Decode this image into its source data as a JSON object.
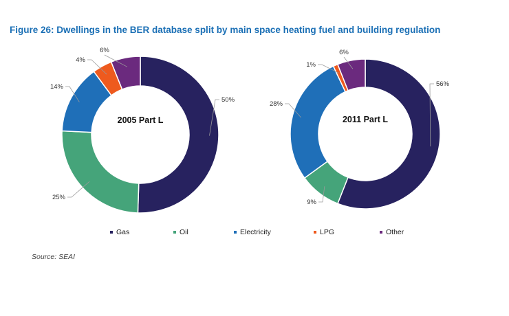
{
  "title": "Figure 26:  Dwellings in the BER database split by main space heating fuel and building regulation",
  "source": "Source: SEAI",
  "legend": [
    {
      "label": "Gas",
      "color": "#27225f"
    },
    {
      "label": "Oil",
      "color": "#45a47a"
    },
    {
      "label": "Electricity",
      "color": "#1f6fb8"
    },
    {
      "label": "LPG",
      "color": "#ee5a1e"
    },
    {
      "label": "Other",
      "color": "#6b2a7e"
    }
  ],
  "chart_data": [
    {
      "type": "pie",
      "donut": true,
      "title": "2005 Part L",
      "categories": [
        "Gas",
        "Oil",
        "Electricity",
        "LPG",
        "Other"
      ],
      "values": [
        50,
        25,
        14,
        4,
        6
      ],
      "labels": [
        "50%",
        "25%",
        "14%",
        "4%",
        "6%"
      ],
      "colors": [
        "#27225f",
        "#45a47a",
        "#1f6fb8",
        "#ee5a1e",
        "#6b2a7e"
      ],
      "legend_position": "bottom"
    },
    {
      "type": "pie",
      "donut": true,
      "title": "2011 Part L",
      "categories": [
        "Gas",
        "Oil",
        "Electricity",
        "LPG",
        "Other"
      ],
      "values": [
        56,
        9,
        28,
        1,
        6
      ],
      "labels": [
        "56%",
        "9%",
        "28%",
        "1%",
        "6%"
      ],
      "colors": [
        "#27225f",
        "#45a47a",
        "#1f6fb8",
        "#ee5a1e",
        "#6b2a7e"
      ],
      "legend_position": "bottom"
    }
  ]
}
